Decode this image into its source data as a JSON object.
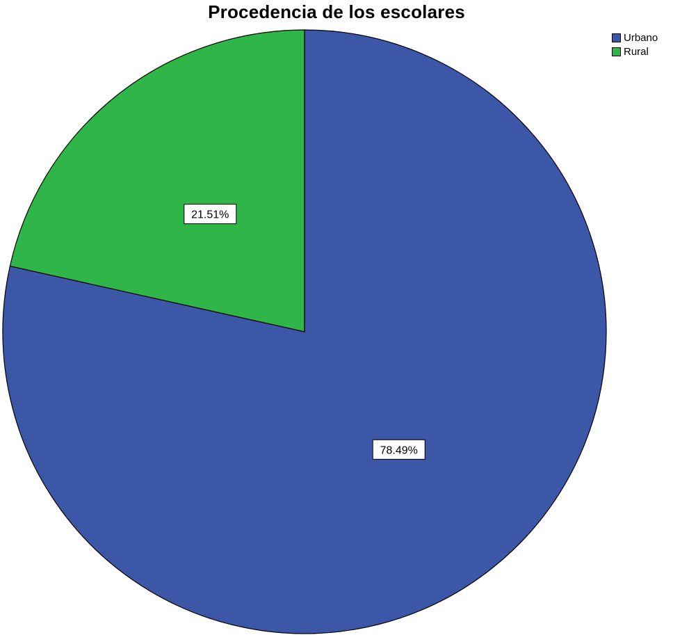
{
  "chart_data": {
    "type": "pie",
    "title": "Procedencia de los escolares",
    "categories": [
      "Urbano",
      "Rural"
    ],
    "values": [
      78.49,
      21.51
    ],
    "labels": [
      "78.49%",
      "21.51%"
    ],
    "colors": [
      "#3d57a8",
      "#2fb548"
    ],
    "legend_position": "top-right",
    "start": "12 o'clock",
    "direction": "clockwise"
  }
}
